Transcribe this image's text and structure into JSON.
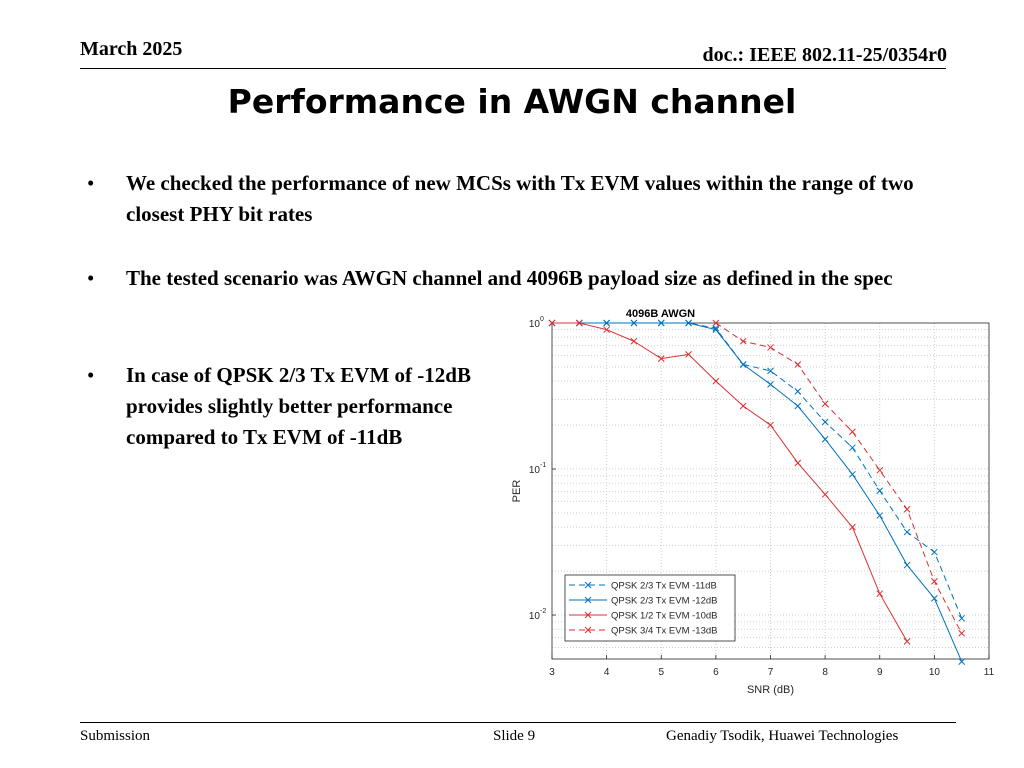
{
  "header": {
    "date": "March 2025",
    "doc": "doc.: IEEE 802.11-25/0354r0"
  },
  "title": "Performance in AWGN channel",
  "bullets": [
    "We checked the performance of new MCSs with Tx EVM values within the range of two closest PHY bit rates",
    "The tested scenario was AWGN channel and 4096B payload size as defined in the spec",
    "In case of QPSK 2/3 Tx EVM of -12dB provides slightly better performance compared to Tx EVM of -11dB"
  ],
  "bullet_symbol": "•",
  "footer": {
    "left": "Submission",
    "center": "Slide 9",
    "right": "Genadiy Tsodik, Huawei Technologies"
  },
  "chart_data": {
    "type": "line",
    "title": "4096B AWGN",
    "xlabel": "SNR (dB)",
    "ylabel": "PER",
    "yscale": "log",
    "xlim": [
      3,
      11
    ],
    "ylim": [
      0.005,
      1
    ],
    "xticks": [
      "3",
      "4",
      "5",
      "6",
      "7",
      "8",
      "9",
      "10",
      "11"
    ],
    "yticks": [
      {
        "value": 1,
        "exp": "0"
      },
      {
        "value": 0.1,
        "exp": "-1"
      },
      {
        "value": 0.01,
        "exp": "-2"
      }
    ],
    "grid": true,
    "legend_position": "bottom-left",
    "marker": "x",
    "series": [
      {
        "name": "QPSK 2/3 Tx EVM -11dB",
        "color": "#0072BD",
        "dash": "dashed",
        "x": [
          3,
          3.5,
          4,
          4.5,
          5,
          5.5,
          6,
          6.5,
          7,
          7.5,
          8,
          8.5,
          9,
          9.5,
          10,
          10.5
        ],
        "y": [
          1,
          1,
          1,
          1,
          1,
          1,
          0.92,
          0.52,
          0.47,
          0.34,
          0.21,
          0.14,
          0.071,
          0.037,
          0.027,
          0.0095
        ]
      },
      {
        "name": "QPSK 2/3 Tx EVM -12dB",
        "color": "#0072BD",
        "dash": "solid",
        "x": [
          3,
          3.5,
          4,
          4.5,
          5,
          5.5,
          6,
          6.5,
          7,
          7.5,
          8,
          8.5,
          9,
          9.5,
          10,
          10.5
        ],
        "y": [
          1,
          1,
          1,
          1,
          1,
          1,
          0.9,
          0.52,
          0.38,
          0.27,
          0.16,
          0.092,
          0.048,
          0.022,
          0.013,
          0.0048
        ]
      },
      {
        "name": "QPSK 1/2 Tx EVM -10dB",
        "color": "#D93030",
        "dash": "solid",
        "x": [
          3,
          3.5,
          4,
          4.5,
          5,
          5.5,
          6,
          6.5,
          7,
          7.5,
          8,
          8.5,
          9,
          9.5
        ],
        "y": [
          1,
          1,
          0.9,
          0.75,
          0.57,
          0.61,
          0.4,
          0.27,
          0.2,
          0.11,
          0.067,
          0.04,
          0.014,
          0.0066
        ]
      },
      {
        "name": "QPSK 3/4 Tx EVM -13dB",
        "color": "#D93030",
        "dash": "dashed",
        "x": [
          6,
          6.5,
          7,
          7.5,
          8,
          8.5,
          9,
          9.5,
          10,
          10.5
        ],
        "y": [
          1,
          0.75,
          0.68,
          0.52,
          0.28,
          0.18,
          0.098,
          0.053,
          0.017,
          0.0075
        ]
      }
    ]
  }
}
